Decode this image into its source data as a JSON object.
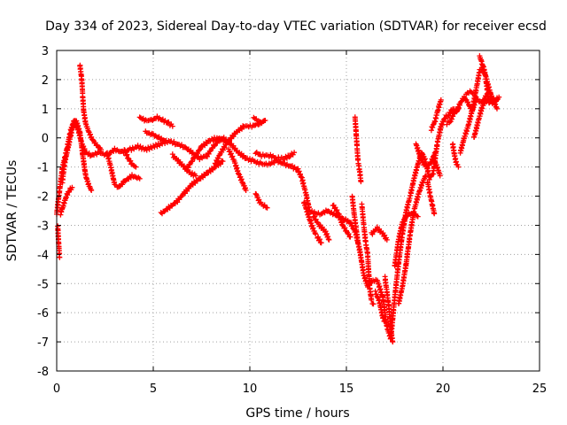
{
  "chart_data": {
    "type": "scatter",
    "title": "Day 334 of 2023, Sidereal Day-to-day VTEC variation (SDTVAR) for receiver ecsd",
    "xlabel": "GPS time / hours",
    "ylabel": "SDTVAR / TECUs",
    "xlim": [
      0,
      25
    ],
    "ylim": [
      -8,
      3
    ],
    "x_ticks": [
      "0",
      "5",
      "10",
      "15",
      "20",
      "25"
    ],
    "y_ticks": [
      "-8",
      "-7",
      "-6",
      "-5",
      "-4",
      "-3",
      "-2",
      "-1",
      "0",
      "1",
      "2",
      "3"
    ],
    "grid": true,
    "marker": "+",
    "color": "#ff0000",
    "tracks": [
      [
        [
          0.0,
          -2.6
        ],
        [
          0.15,
          -1.8
        ],
        [
          0.3,
          -1.0
        ],
        [
          0.45,
          -0.6
        ],
        [
          0.55,
          -0.3
        ],
        [
          0.7,
          0.2
        ],
        [
          0.9,
          0.6
        ],
        [
          1.1,
          0.3
        ],
        [
          1.3,
          -0.2
        ],
        [
          1.5,
          -0.5
        ],
        [
          1.8,
          -0.6
        ],
        [
          2.2,
          -0.5
        ],
        [
          2.6,
          -0.6
        ],
        [
          3.0,
          -0.4
        ],
        [
          3.4,
          -0.5
        ],
        [
          3.8,
          -0.4
        ],
        [
          4.2,
          -0.3
        ],
        [
          4.6,
          -0.4
        ],
        [
          5.0,
          -0.3
        ],
        [
          5.4,
          -0.2
        ],
        [
          5.8,
          -0.1
        ],
        [
          6.2,
          -0.2
        ],
        [
          6.6,
          -0.3
        ],
        [
          7.0,
          -0.5
        ],
        [
          7.4,
          -0.7
        ],
        [
          7.8,
          -0.6
        ],
        [
          8.2,
          -0.2
        ],
        [
          8.6,
          0.0
        ],
        [
          9.0,
          -0.2
        ],
        [
          9.4,
          -0.5
        ],
        [
          9.8,
          -0.7
        ],
        [
          10.2,
          -0.8
        ],
        [
          10.6,
          -0.9
        ],
        [
          11.0,
          -0.9
        ],
        [
          11.4,
          -0.8
        ],
        [
          11.8,
          -0.9
        ],
        [
          12.2,
          -1.0
        ],
        [
          12.5,
          -1.1
        ],
        [
          12.7,
          -1.4
        ],
        [
          12.9,
          -1.9
        ],
        [
          13.1,
          -2.5
        ],
        [
          13.4,
          -2.6
        ],
        [
          13.7,
          -2.6
        ],
        [
          14.0,
          -2.5
        ],
        [
          14.3,
          -2.6
        ],
        [
          14.6,
          -2.7
        ],
        [
          14.9,
          -2.8
        ],
        [
          15.2,
          -2.9
        ],
        [
          15.5,
          -3.3
        ],
        [
          15.7,
          -3.9
        ],
        [
          15.9,
          -4.7
        ],
        [
          16.1,
          -5.1
        ],
        [
          16.3,
          -4.9
        ],
        [
          16.6,
          -4.9
        ],
        [
          16.9,
          -5.5
        ],
        [
          17.1,
          -6.5
        ],
        [
          17.3,
          -6.9
        ],
        [
          17.5,
          -5.5
        ],
        [
          17.7,
          -4.3
        ],
        [
          17.9,
          -3.3
        ],
        [
          18.1,
          -2.5
        ],
        [
          18.3,
          -2.0
        ],
        [
          18.5,
          -1.4
        ],
        [
          18.7,
          -0.9
        ],
        [
          18.9,
          -0.5
        ],
        [
          19.1,
          -0.8
        ],
        [
          19.3,
          -1.4
        ],
        [
          19.5,
          -1.2
        ],
        [
          19.7,
          -0.2
        ],
        [
          19.9,
          0.4
        ],
        [
          20.1,
          0.7
        ],
        [
          20.3,
          0.8
        ],
        [
          20.5,
          1.0
        ],
        [
          20.7,
          0.9
        ],
        [
          20.9,
          1.2
        ],
        [
          21.1,
          1.4
        ],
        [
          21.3,
          1.2
        ],
        [
          21.5,
          0.9
        ],
        [
          21.7,
          1.6
        ],
        [
          21.9,
          2.3
        ],
        [
          22.1,
          2.4
        ],
        [
          22.3,
          1.9
        ],
        [
          22.6,
          1.2
        ],
        [
          22.9,
          1.4
        ]
      ],
      [
        [
          0.05,
          -3.0
        ],
        [
          0.1,
          -3.6
        ],
        [
          0.15,
          -4.1
        ]
      ],
      [
        [
          0.2,
          -2.6
        ],
        [
          0.35,
          -2.3
        ],
        [
          0.5,
          -2.0
        ],
        [
          0.65,
          -1.8
        ],
        [
          0.8,
          -1.7
        ]
      ],
      [
        [
          0.3,
          -1.5
        ],
        [
          0.4,
          -0.9
        ],
        [
          0.6,
          -0.3
        ],
        [
          0.8,
          0.3
        ],
        [
          1.0,
          0.6
        ],
        [
          1.2,
          0.2
        ],
        [
          1.35,
          -0.6
        ],
        [
          1.5,
          -1.3
        ],
        [
          1.65,
          -1.6
        ],
        [
          1.8,
          -1.8
        ]
      ],
      [
        [
          1.2,
          2.5
        ],
        [
          1.3,
          2.0
        ],
        [
          1.35,
          1.4
        ],
        [
          1.4,
          0.9
        ],
        [
          1.5,
          0.5
        ],
        [
          1.6,
          0.3
        ],
        [
          1.8,
          0.0
        ],
        [
          2.0,
          -0.2
        ],
        [
          2.3,
          -0.4
        ]
      ],
      [
        [
          2.6,
          -0.5
        ],
        [
          2.8,
          -1.0
        ],
        [
          3.0,
          -1.6
        ],
        [
          3.2,
          -1.7
        ],
        [
          3.5,
          -1.5
        ],
        [
          3.9,
          -1.3
        ],
        [
          4.3,
          -1.4
        ]
      ],
      [
        [
          3.5,
          -0.4
        ],
        [
          3.7,
          -0.7
        ],
        [
          3.9,
          -0.9
        ],
        [
          4.1,
          -1.0
        ]
      ],
      [
        [
          4.3,
          0.7
        ],
        [
          4.6,
          0.6
        ],
        [
          4.9,
          0.6
        ],
        [
          5.2,
          0.7
        ],
        [
          5.5,
          0.6
        ],
        [
          5.8,
          0.5
        ],
        [
          6.0,
          0.4
        ]
      ],
      [
        [
          4.6,
          0.2
        ],
        [
          5.0,
          0.1
        ],
        [
          5.3,
          0.0
        ],
        [
          5.6,
          -0.1
        ]
      ],
      [
        [
          5.4,
          -2.6
        ],
        [
          5.8,
          -2.4
        ],
        [
          6.2,
          -2.2
        ],
        [
          6.6,
          -1.9
        ],
        [
          7.0,
          -1.6
        ],
        [
          7.4,
          -1.4
        ],
        [
          7.8,
          -1.2
        ],
        [
          8.2,
          -1.0
        ],
        [
          8.6,
          -0.8
        ]
      ],
      [
        [
          6.0,
          -0.6
        ],
        [
          6.3,
          -0.8
        ],
        [
          6.6,
          -1.0
        ],
        [
          6.9,
          -1.2
        ],
        [
          7.2,
          -1.3
        ]
      ],
      [
        [
          6.7,
          -1.1
        ],
        [
          7.1,
          -0.7
        ],
        [
          7.5,
          -0.3
        ],
        [
          7.9,
          -0.1
        ],
        [
          8.3,
          0.0
        ],
        [
          8.7,
          -0.1
        ]
      ],
      [
        [
          8.2,
          -0.9
        ],
        [
          8.5,
          -0.5
        ],
        [
          8.9,
          -0.1
        ],
        [
          9.3,
          0.2
        ],
        [
          9.7,
          0.4
        ],
        [
          10.1,
          0.4
        ],
        [
          10.5,
          0.5
        ],
        [
          10.8,
          0.6
        ]
      ],
      [
        [
          8.9,
          -0.4
        ],
        [
          9.2,
          -0.8
        ],
        [
          9.4,
          -1.2
        ],
        [
          9.6,
          -1.5
        ],
        [
          9.8,
          -1.8
        ]
      ],
      [
        [
          10.2,
          0.7
        ],
        [
          10.4,
          0.6
        ],
        [
          10.6,
          0.5
        ]
      ],
      [
        [
          10.3,
          -1.9
        ],
        [
          10.5,
          -2.2
        ],
        [
          10.7,
          -2.3
        ],
        [
          10.9,
          -2.4
        ]
      ],
      [
        [
          10.3,
          -0.5
        ],
        [
          10.6,
          -0.6
        ],
        [
          11.0,
          -0.6
        ],
        [
          11.4,
          -0.7
        ],
        [
          11.8,
          -0.7
        ],
        [
          12.1,
          -0.6
        ],
        [
          12.3,
          -0.5
        ]
      ],
      [
        [
          12.8,
          -2.2
        ],
        [
          13.0,
          -2.6
        ],
        [
          13.2,
          -3.0
        ],
        [
          13.4,
          -3.3
        ]
      ],
      [
        [
          13.3,
          -2.7
        ],
        [
          13.6,
          -3.0
        ],
        [
          13.9,
          -3.2
        ],
        [
          14.1,
          -3.5
        ]
      ],
      [
        [
          13.5,
          -3.4
        ],
        [
          13.7,
          -3.6
        ]
      ],
      [
        [
          14.3,
          -2.3
        ],
        [
          14.6,
          -2.6
        ],
        [
          14.8,
          -3.0
        ],
        [
          15.0,
          -3.2
        ],
        [
          15.2,
          -3.4
        ]
      ],
      [
        [
          15.3,
          -2.0
        ],
        [
          15.4,
          -2.6
        ],
        [
          15.5,
          -3.1
        ],
        [
          15.6,
          -3.6
        ]
      ],
      [
        [
          15.45,
          0.7
        ],
        [
          15.5,
          0.2
        ],
        [
          15.55,
          -0.3
        ],
        [
          15.6,
          -0.8
        ],
        [
          15.65,
          -1.0
        ],
        [
          15.7,
          -1.2
        ],
        [
          15.75,
          -1.5
        ]
      ],
      [
        [
          15.8,
          -2.3
        ],
        [
          15.9,
          -3.0
        ],
        [
          16.0,
          -3.6
        ],
        [
          16.1,
          -4.0
        ],
        [
          16.2,
          -5.1
        ],
        [
          16.3,
          -5.6
        ],
        [
          16.4,
          -5.7
        ]
      ],
      [
        [
          16.5,
          -5.3
        ],
        [
          16.7,
          -5.6
        ],
        [
          16.9,
          -6.2
        ],
        [
          17.0,
          -6.3
        ]
      ],
      [
        [
          16.3,
          -3.3
        ],
        [
          16.6,
          -3.1
        ],
        [
          16.9,
          -3.3
        ],
        [
          17.1,
          -3.5
        ]
      ],
      [
        [
          17.0,
          -4.8
        ],
        [
          17.2,
          -5.8
        ],
        [
          17.3,
          -6.6
        ],
        [
          17.4,
          -7.0
        ]
      ],
      [
        [
          17.5,
          -4.4
        ],
        [
          17.7,
          -3.5
        ],
        [
          17.9,
          -2.9
        ],
        [
          18.1,
          -2.7
        ],
        [
          18.3,
          -2.6
        ],
        [
          18.5,
          -2.6
        ],
        [
          18.7,
          -2.7
        ]
      ],
      [
        [
          17.7,
          -5.7
        ],
        [
          17.9,
          -5.1
        ],
        [
          18.1,
          -4.3
        ],
        [
          18.3,
          -3.3
        ],
        [
          18.5,
          -2.5
        ],
        [
          18.7,
          -2.0
        ],
        [
          18.9,
          -1.6
        ],
        [
          19.1,
          -1.3
        ]
      ],
      [
        [
          18.6,
          -0.2
        ],
        [
          18.8,
          -0.6
        ],
        [
          19.0,
          -0.9
        ],
        [
          19.2,
          -1.0
        ],
        [
          19.4,
          -0.8
        ],
        [
          19.6,
          -0.5
        ]
      ],
      [
        [
          19.2,
          -1.5
        ],
        [
          19.35,
          -2.0
        ],
        [
          19.45,
          -2.3
        ],
        [
          19.55,
          -2.6
        ]
      ],
      [
        [
          19.5,
          -0.7
        ],
        [
          19.7,
          -1.0
        ],
        [
          19.85,
          -1.3
        ]
      ],
      [
        [
          19.4,
          0.3
        ],
        [
          19.6,
          0.6
        ],
        [
          19.75,
          1.0
        ],
        [
          19.9,
          1.3
        ]
      ],
      [
        [
          20.2,
          0.5
        ],
        [
          20.4,
          0.6
        ],
        [
          20.6,
          0.9
        ],
        [
          20.8,
          1.0
        ]
      ],
      [
        [
          20.5,
          -0.2
        ],
        [
          20.6,
          -0.6
        ],
        [
          20.7,
          -0.9
        ],
        [
          20.8,
          -1.0
        ]
      ],
      [
        [
          20.9,
          -0.5
        ],
        [
          21.1,
          0.0
        ],
        [
          21.3,
          0.4
        ],
        [
          21.5,
          0.9
        ],
        [
          21.7,
          1.3
        ]
      ],
      [
        [
          21.2,
          1.5
        ],
        [
          21.4,
          1.6
        ],
        [
          21.6,
          1.5
        ],
        [
          21.8,
          1.3
        ],
        [
          22.0,
          1.2
        ],
        [
          22.2,
          1.4
        ],
        [
          22.4,
          1.6
        ],
        [
          22.6,
          1.3
        ],
        [
          22.8,
          1.0
        ]
      ],
      [
        [
          21.9,
          2.8
        ],
        [
          22.0,
          2.6
        ],
        [
          22.1,
          2.4
        ],
        [
          22.2,
          2.1
        ],
        [
          22.3,
          1.6
        ],
        [
          22.4,
          1.2
        ]
      ],
      [
        [
          21.6,
          0.0
        ],
        [
          21.8,
          0.5
        ],
        [
          22.0,
          1.0
        ],
        [
          22.2,
          1.3
        ],
        [
          22.5,
          1.2
        ],
        [
          22.8,
          1.3
        ]
      ]
    ]
  }
}
